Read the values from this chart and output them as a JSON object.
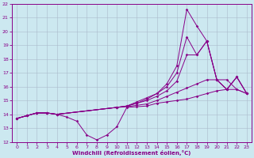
{
  "xlabel": "Windchill (Refroidissement éolien,°C)",
  "background_color": "#cce8f0",
  "line_color": "#880088",
  "grid_color": "#aabbcc",
  "xlim": [
    -0.5,
    23.5
  ],
  "ylim": [
    12,
    22
  ],
  "xticks": [
    0,
    1,
    2,
    3,
    4,
    5,
    6,
    7,
    8,
    9,
    10,
    11,
    12,
    13,
    14,
    15,
    16,
    17,
    18,
    19,
    20,
    21,
    22,
    23
  ],
  "yticks": [
    12,
    13,
    14,
    15,
    16,
    17,
    18,
    19,
    20,
    21,
    22
  ],
  "lines": [
    {
      "x": [
        0,
        1,
        2,
        3,
        4,
        5,
        6,
        7,
        8,
        9,
        10,
        11,
        12,
        13,
        14,
        15,
        16,
        17,
        18,
        19,
        20,
        21,
        22,
        23
      ],
      "y": [
        13.7,
        13.9,
        14.1,
        14.1,
        14.0,
        13.8,
        13.5,
        12.5,
        12.15,
        12.5,
        13.1,
        14.5,
        14.55,
        14.6,
        14.8,
        14.9,
        15.0,
        15.1,
        15.3,
        15.5,
        15.7,
        15.8,
        15.8,
        15.5
      ]
    },
    {
      "x": [
        0,
        1,
        2,
        3,
        4,
        10,
        11,
        12,
        13,
        14,
        15,
        16,
        17,
        18,
        19,
        20,
        21,
        22,
        23
      ],
      "y": [
        13.7,
        13.9,
        14.1,
        14.1,
        14.0,
        14.5,
        14.55,
        14.65,
        14.75,
        15.0,
        15.3,
        15.6,
        15.9,
        16.2,
        16.5,
        16.5,
        16.5,
        15.8,
        15.5
      ]
    },
    {
      "x": [
        0,
        1,
        2,
        3,
        4,
        10,
        11,
        12,
        13,
        14,
        15,
        16,
        17,
        18,
        19,
        20,
        21,
        22,
        23
      ],
      "y": [
        13.7,
        13.9,
        14.1,
        14.1,
        14.0,
        14.5,
        14.6,
        14.8,
        15.0,
        15.3,
        15.7,
        16.4,
        18.3,
        18.3,
        19.3,
        16.5,
        15.8,
        16.7,
        15.5
      ]
    },
    {
      "x": [
        0,
        1,
        2,
        3,
        4,
        10,
        11,
        12,
        13,
        14,
        15,
        16,
        17,
        18,
        19,
        20,
        21,
        22,
        23
      ],
      "y": [
        13.7,
        13.9,
        14.1,
        14.1,
        14.0,
        14.5,
        14.6,
        14.8,
        15.1,
        15.5,
        16.0,
        17.0,
        19.6,
        18.3,
        19.3,
        16.5,
        15.8,
        16.7,
        15.5
      ]
    },
    {
      "x": [
        0,
        1,
        2,
        3,
        4,
        10,
        11,
        12,
        13,
        14,
        15,
        16,
        17,
        18,
        19,
        20,
        21,
        22,
        23
      ],
      "y": [
        13.7,
        13.9,
        14.1,
        14.1,
        14.0,
        14.5,
        14.6,
        14.9,
        15.2,
        15.5,
        16.2,
        17.5,
        21.6,
        20.4,
        19.3,
        16.5,
        15.8,
        16.7,
        15.5
      ]
    }
  ]
}
